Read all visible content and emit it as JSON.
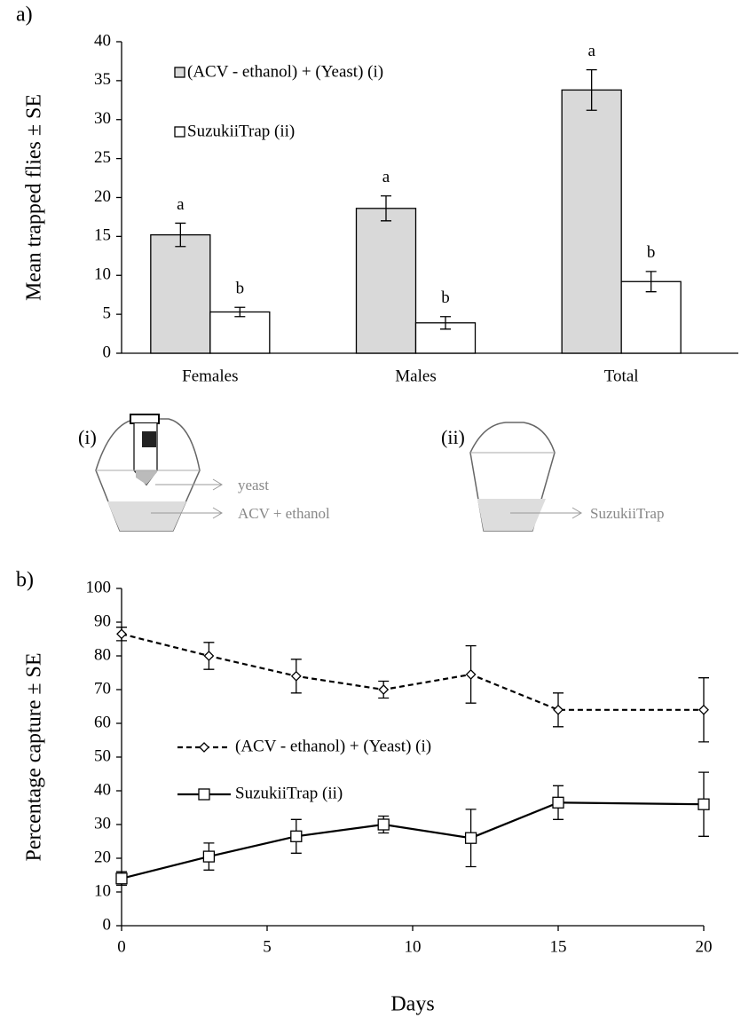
{
  "chart_data": [
    {
      "type": "bar",
      "panel_label": "a)",
      "y_label": "Mean trapped flies ± SE",
      "categories": [
        "Females",
        "Males",
        "Total"
      ],
      "series": [
        {
          "name": "(ACV - ethanol) + (Yeast)  (i)",
          "color": "#d9d9d9",
          "values": [
            15.2,
            18.6,
            33.8
          ],
          "errors": [
            1.5,
            1.6,
            2.6
          ],
          "letters": [
            "a",
            "a",
            "a"
          ]
        },
        {
          "name": "SuzukiiTrap   (ii)",
          "color": "#ffffff",
          "values": [
            5.3,
            3.9,
            9.2
          ],
          "errors": [
            0.6,
            0.8,
            1.3
          ],
          "letters": [
            "b",
            "b",
            "b"
          ]
        }
      ],
      "ylim": [
        0,
        40
      ],
      "yticks": [
        0,
        5,
        10,
        15,
        20,
        25,
        30,
        35,
        40
      ]
    },
    {
      "type": "line",
      "panel_label": "b)",
      "x_label": "Days",
      "y_label": "Percentage capture ± SE",
      "x": [
        0,
        3,
        6,
        9,
        12,
        15,
        20
      ],
      "series": [
        {
          "name": "(ACV - ethanol) + (Yeast)  (i)",
          "color": "#000000",
          "linestyle": "dashed",
          "marker": "diamond",
          "values": [
            86.5,
            80,
            74,
            70,
            74.5,
            64,
            64
          ],
          "errors": [
            2,
            4,
            5,
            2.5,
            8.5,
            5,
            9.5
          ]
        },
        {
          "name": "SuzukiiTrap   (ii)",
          "color": "#000000",
          "linestyle": "solid",
          "marker": "square",
          "values": [
            14,
            20.5,
            26.5,
            30,
            26,
            36.5,
            36
          ],
          "errors": [
            2,
            4,
            5,
            2.5,
            8.5,
            5,
            9.5
          ]
        }
      ],
      "xlim": [
        0,
        20
      ],
      "xticks": [
        0,
        5,
        10,
        15,
        20
      ],
      "ylim": [
        0,
        100
      ],
      "yticks": [
        0,
        10,
        20,
        30,
        40,
        50,
        60,
        70,
        80,
        90,
        100
      ]
    }
  ],
  "diagram": {
    "trap_i": {
      "label": "(i)",
      "arrows": [
        "yeast",
        "ACV + ethanol"
      ]
    },
    "trap_ii": {
      "label": "(ii)",
      "arrows": [
        "SuzukiiTrap"
      ]
    }
  }
}
